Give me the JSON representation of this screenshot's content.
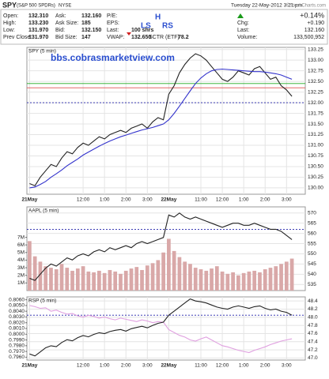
{
  "header": {
    "symbol": "SPY",
    "name": "(S&P 500 SPDRs)",
    "exchange": "NYSE",
    "datetime": "Tuesday 22-May-2012  3:21 pm",
    "credit": "©StockCharts.com",
    "quote": [
      [
        {
          "label": "Open:",
          "value": "132.310"
        },
        {
          "label": "High:",
          "value": "133.230"
        },
        {
          "label": "Low:",
          "value": "131.970"
        },
        {
          "label": "Prev Close:",
          "value": "131.970"
        }
      ],
      [
        {
          "label": "Ask:",
          "value": "132.160"
        },
        {
          "label": "Ask Size:",
          "value": "185"
        },
        {
          "label": "Bid:",
          "value": "132.150"
        },
        {
          "label": "Bid Size:",
          "value": "147"
        }
      ],
      [
        {
          "label": "P/E:"
        },
        {
          "label": "EPS:"
        },
        {
          "label": "Last:",
          "value": "100 shrs"
        },
        {
          "label": "VWAP:",
          "value": "132.650"
        }
      ],
      [
        {
          "label": "SCTR (ETF)",
          "value": "78.2"
        }
      ]
    ],
    "change_pct": "+0.14%",
    "summary": [
      {
        "label": "Chg:",
        "value": "+0.190"
      },
      {
        "label": "Last:",
        "value": "132.160"
      },
      {
        "label": "Volume:",
        "value": "133,500,952"
      }
    ],
    "pattern_labels": [
      "LS",
      "H",
      "RS"
    ]
  },
  "chart_data": [
    {
      "type": "line",
      "title": "SPY (5 min)",
      "annotations": [
        "bbs.cobrasmarketview.com"
      ],
      "grid": true,
      "categories": [
        "21May",
        null,
        null,
        null,
        null,
        null,
        null,
        null,
        null,
        null,
        "12:00",
        null,
        null,
        null,
        "1:00",
        null,
        null,
        null,
        "2:00",
        null,
        null,
        null,
        "3:00",
        null,
        null,
        null,
        "22May",
        null,
        null,
        null,
        null,
        null,
        "11:00",
        null,
        null,
        null,
        "12:00",
        null,
        null,
        null,
        "1:00",
        null,
        null,
        null,
        "2:00",
        null,
        null,
        null,
        "3:00",
        null
      ],
      "ylim": [
        129.85,
        133.3
      ],
      "yticks": [
        {
          "value": 130.0,
          "label": "130.00"
        },
        {
          "value": 130.25,
          "label": "130.25"
        },
        {
          "value": 130.5,
          "label": "130.50"
        },
        {
          "value": 130.75,
          "label": "130.75"
        },
        {
          "value": 131.0,
          "label": "131.00"
        },
        {
          "value": 131.25,
          "label": "131.25"
        },
        {
          "value": 131.5,
          "label": "131.50"
        },
        {
          "value": 131.75,
          "label": "131.75"
        },
        {
          "value": 132.0,
          "label": "132.00"
        },
        {
          "value": 132.25,
          "label": "132.25"
        },
        {
          "value": 132.5,
          "label": "132.50"
        },
        {
          "value": 132.75,
          "label": "132.75"
        },
        {
          "value": 133.0,
          "label": "133.00"
        },
        {
          "value": 133.25,
          "label": "133.25"
        }
      ],
      "reference_lines": [
        {
          "value": 132.35,
          "color": "#e05050"
        },
        {
          "value": 132.45,
          "color": "#22aa22"
        },
        {
          "value": 132.0,
          "color": "#2222aa",
          "dashed": true
        }
      ],
      "series": [
        {
          "color": "#222222",
          "values": [
            130.1,
            130.05,
            130.25,
            130.4,
            130.55,
            130.5,
            130.7,
            130.85,
            130.8,
            130.95,
            131.05,
            131.0,
            131.1,
            131.2,
            131.15,
            131.25,
            131.3,
            131.35,
            131.3,
            131.4,
            131.45,
            131.5,
            131.4,
            131.55,
            131.65,
            131.6,
            132.2,
            132.4,
            132.7,
            132.9,
            133.05,
            133.15,
            133.1,
            133.0,
            132.85,
            132.7,
            132.55,
            132.5,
            132.6,
            132.75,
            132.7,
            132.65,
            132.8,
            132.85,
            132.7,
            132.55,
            132.6,
            132.4,
            132.3,
            132.15
          ]
        },
        {
          "color": "#3333cc",
          "values": [
            130.0,
            130.02,
            130.08,
            130.15,
            130.25,
            130.33,
            130.42,
            130.52,
            130.6,
            130.68,
            130.77,
            130.84,
            130.91,
            130.98,
            131.04,
            131.1,
            131.15,
            131.2,
            131.24,
            131.28,
            131.32,
            131.36,
            131.39,
            131.42,
            131.46,
            131.5,
            131.6,
            131.75,
            131.92,
            132.1,
            132.28,
            132.45,
            132.58,
            132.68,
            132.75,
            132.78,
            132.79,
            132.78,
            132.77,
            132.76,
            132.75,
            132.74,
            132.73,
            132.73,
            132.72,
            132.7,
            132.68,
            132.65,
            132.6,
            132.55
          ]
        }
      ]
    },
    {
      "type": "line",
      "title": "AAPL (5 min)",
      "grid": true,
      "ylim": [
        532,
        573
      ],
      "yticks": [
        535,
        540,
        545,
        550,
        555,
        560,
        565,
        570
      ],
      "y2lim": [
        0,
        11000000
      ],
      "y2ticks": [
        {
          "value": 1000000,
          "label": "1M"
        },
        {
          "value": 2000000,
          "label": "2M"
        },
        {
          "value": 3000000,
          "label": "3M"
        },
        {
          "value": 4000000,
          "label": "4M"
        },
        {
          "value": 5000000,
          "label": "5M"
        },
        {
          "value": 6000000,
          "label": "6M"
        },
        {
          "value": 7000000,
          "label": "7M"
        }
      ],
      "reference_lines": [
        {
          "value": 562,
          "color": "#2222aa",
          "dashed": true
        }
      ],
      "series": [
        {
          "type": "bar",
          "axis": "y2",
          "color": "#d9a8a8",
          "values": [
            6500000,
            4500000,
            3800000,
            3200000,
            3000000,
            2800000,
            3500000,
            3000000,
            2600000,
            2900000,
            3200000,
            2500000,
            2400000,
            2600000,
            2300000,
            2700000,
            2500000,
            2200000,
            2600000,
            2900000,
            3100000,
            2700000,
            3300000,
            3600000,
            4000000,
            5000000,
            6800000,
            5200000,
            4400000,
            3800000,
            3500000,
            3000000,
            2800000,
            2600000,
            2900000,
            3200000,
            2500000,
            2200000,
            2400000,
            2000000,
            2300000,
            2500000,
            2600000,
            2400000,
            2800000,
            3000000,
            3200000,
            3500000,
            3800000,
            4200000
          ]
        },
        {
          "color": "#222222",
          "values": [
            538,
            537,
            540,
            543,
            545,
            544,
            546,
            548,
            547,
            549,
            550,
            549,
            551,
            552,
            551,
            553,
            552,
            553,
            554,
            553,
            555,
            556,
            555,
            556,
            557,
            558,
            569,
            568,
            570,
            568,
            567,
            568,
            567,
            566,
            565,
            564,
            563,
            564,
            565,
            565,
            564,
            564,
            565,
            564,
            563,
            562,
            562,
            561,
            559,
            557
          ]
        }
      ]
    },
    {
      "type": "line",
      "title": "RSP (5 min)",
      "grid": true,
      "categories": [
        "21May",
        null,
        null,
        null,
        null,
        null,
        null,
        null,
        null,
        null,
        "12:00",
        null,
        null,
        null,
        "1:00",
        null,
        null,
        null,
        "2:00",
        null,
        null,
        null,
        "3:00",
        null,
        null,
        null,
        "22May",
        null,
        null,
        null,
        null,
        null,
        "11:00",
        null,
        null,
        null,
        "12:00",
        null,
        null,
        null,
        "1:00",
        null,
        null,
        null,
        "2:00",
        null,
        null,
        null,
        "3:00",
        null
      ],
      "ylim": [
        46.95,
        48.5
      ],
      "yticks": [
        {
          "value": 47.0,
          "label": "47.0"
        },
        {
          "value": 47.2,
          "label": "47.2"
        },
        {
          "value": 47.4,
          "label": "47.4"
        },
        {
          "value": 47.6,
          "label": "47.6"
        },
        {
          "value": 47.8,
          "label": "47.8"
        },
        {
          "value": 48.0,
          "label": "48.0"
        },
        {
          "value": 48.2,
          "label": "48.2"
        },
        {
          "value": 48.4,
          "label": "48.4"
        }
      ],
      "y2lim": [
        0.7955,
        0.8065
      ],
      "y2ticks": [
        {
          "value": 0.796,
          "label": "0.7960"
        },
        {
          "value": 0.797,
          "label": "0.7970"
        },
        {
          "value": 0.798,
          "label": "0.7980"
        },
        {
          "value": 0.799,
          "label": "0.7990"
        },
        {
          "value": 0.8,
          "label": "0.8000"
        },
        {
          "value": 0.801,
          "label": "0.8010"
        },
        {
          "value": 0.802,
          "label": "0.8020"
        },
        {
          "value": 0.803,
          "label": "0.8030"
        },
        {
          "value": 0.804,
          "label": "0.8040"
        },
        {
          "value": 0.805,
          "label": "0.8050"
        },
        {
          "value": 0.806,
          "label": "0.8060"
        }
      ],
      "reference_lines": [
        {
          "value": 48.05,
          "color": "#2222aa",
          "dashed": true
        }
      ],
      "series": [
        {
          "axis": "y2",
          "color": "#e0a0e0",
          "values": [
            0.805,
            0.8048,
            0.8045,
            0.8046,
            0.804,
            0.8042,
            0.8038,
            0.8035,
            0.8036,
            0.8032,
            0.803,
            0.8033,
            0.8031,
            0.8028,
            0.803,
            0.8027,
            0.8025,
            0.8028,
            0.8026,
            0.8024,
            0.8022,
            0.8025,
            0.8023,
            0.802,
            0.8022,
            0.8021,
            0.8008,
            0.8003,
            0.7998,
            0.7995,
            0.799,
            0.7988,
            0.7992,
            0.7995,
            0.799,
            0.7985,
            0.798,
            0.7978,
            0.7975,
            0.7972,
            0.797,
            0.7968,
            0.7972,
            0.7975,
            0.7978,
            0.7982,
            0.7985,
            0.7988,
            0.799,
            0.7992
          ]
        },
        {
          "color": "#222222",
          "values": [
            47.1,
            47.05,
            47.15,
            47.25,
            47.3,
            47.28,
            47.38,
            47.45,
            47.42,
            47.5,
            47.55,
            47.52,
            47.58,
            47.62,
            47.6,
            47.65,
            47.68,
            47.7,
            47.66,
            47.72,
            47.75,
            47.78,
            47.74,
            47.8,
            47.85,
            47.88,
            48.05,
            48.15,
            48.25,
            48.35,
            48.45,
            48.4,
            48.38,
            48.35,
            48.3,
            48.25,
            48.22,
            48.2,
            48.25,
            48.28,
            48.25,
            48.22,
            48.26,
            48.28,
            48.22,
            48.18,
            48.2,
            48.15,
            48.12,
            48.05
          ]
        }
      ]
    }
  ]
}
